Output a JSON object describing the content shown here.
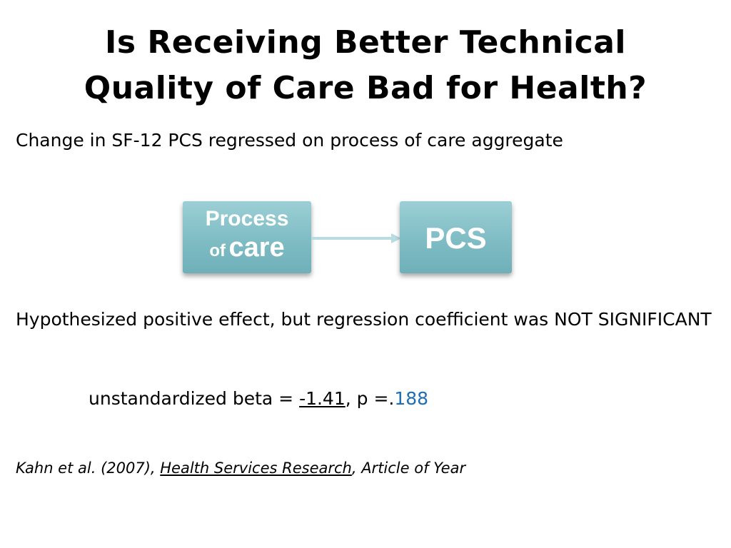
{
  "slide": {
    "title_line1": "Is Receiving Better Technical",
    "title_line2": "Quality of Care Bad for Health?",
    "subtitle": "Change in SF-12 PCS regressed on process of care aggregate",
    "diagram": {
      "box1_line1": "Process",
      "box1_line2_small": "of",
      "box1_line2_big": "care",
      "box2_label": "PCS",
      "box_color": "#84c1c9"
    },
    "result_text": "Hypothesized positive effect, but regression coefficient was NOT SIGNIFICANT",
    "beta": {
      "prefix": "unstandardized beta = ",
      "value": "-1.41",
      "middle": ", p =.",
      "p_value": "188"
    },
    "citation": {
      "authors": "Kahn et al. (2007), ",
      "journal": "Health Services Research",
      "suffix": ", Article of Year"
    },
    "accent_color": "#1f6eb5"
  }
}
